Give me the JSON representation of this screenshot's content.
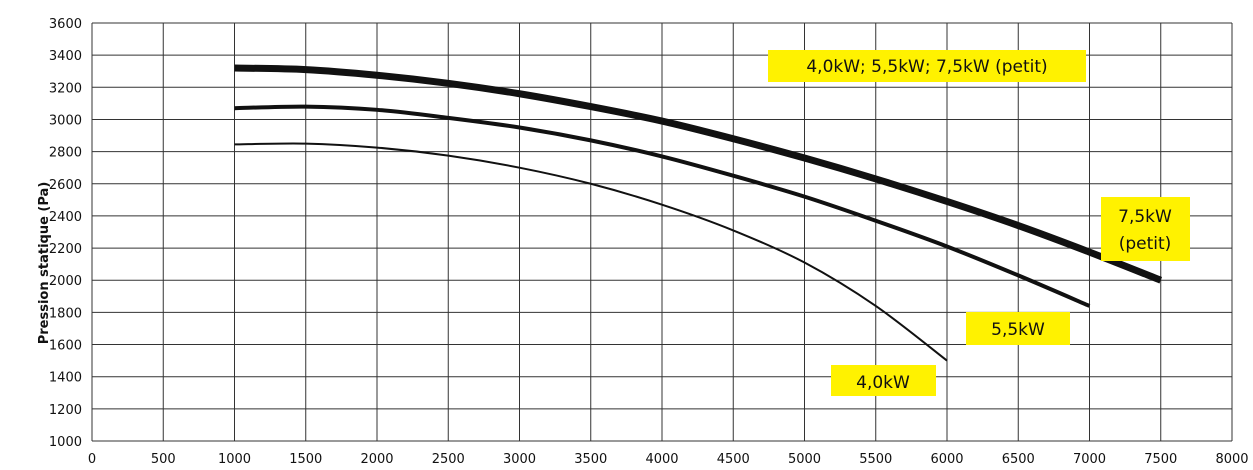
{
  "chart_data": {
    "type": "line",
    "title": "",
    "xlabel": "",
    "ylabel": "Pression statique (Pa)",
    "xlim": [
      0,
      8000
    ],
    "ylim": [
      1000,
      3600
    ],
    "xticks": [
      0,
      500,
      1000,
      1500,
      2000,
      2500,
      3000,
      3500,
      4000,
      4500,
      5000,
      5500,
      6000,
      6500,
      7000,
      7500,
      8000
    ],
    "yticks": [
      1000,
      1200,
      1400,
      1600,
      1800,
      2000,
      2200,
      2400,
      2600,
      2800,
      3000,
      3200,
      3400,
      3600
    ],
    "grid": true,
    "series": [
      {
        "name": "4,0kW",
        "line_width": "thin",
        "x": [
          1000,
          1500,
          2000,
          2500,
          3000,
          3500,
          4000,
          4500,
          5000,
          5500,
          6000
        ],
        "y": [
          2845,
          2850,
          2825,
          2775,
          2700,
          2600,
          2470,
          2310,
          2110,
          1840,
          1500
        ]
      },
      {
        "name": "5,5kW",
        "line_width": "medium",
        "x": [
          1000,
          1500,
          2000,
          2500,
          3000,
          3500,
          4000,
          4500,
          5000,
          5500,
          6000,
          6500,
          7000
        ],
        "y": [
          3070,
          3080,
          3060,
          3010,
          2950,
          2870,
          2770,
          2650,
          2520,
          2370,
          2210,
          2030,
          1840
        ]
      },
      {
        "name": "7,5kW (petit)",
        "line_width": "thick",
        "x": [
          1000,
          1500,
          2000,
          2500,
          3000,
          3500,
          4000,
          4500,
          5000,
          5500,
          6000,
          6500,
          7000,
          7500
        ],
        "y": [
          3320,
          3310,
          3275,
          3225,
          3160,
          3080,
          2990,
          2880,
          2760,
          2630,
          2490,
          2340,
          2175,
          2000
        ]
      }
    ],
    "annotations": [
      {
        "text": "4,0kW; 5,5kW; 7,5kW (petit)",
        "anchor": "top-right of upper curve",
        "background": "#FFF200"
      },
      {
        "text": "7,5kW",
        "text2": "(petit)",
        "anchor": "end of upper curve",
        "background": "#FFF200"
      },
      {
        "text": "5,5kW",
        "anchor": "end of middle curve",
        "background": "#FFF200"
      },
      {
        "text": "4,0kW",
        "anchor": "end of lower curve",
        "background": "#FFF200"
      }
    ],
    "colors": {
      "line": "#111111",
      "grid": "#333333",
      "label_bg": "#FFF200"
    }
  }
}
